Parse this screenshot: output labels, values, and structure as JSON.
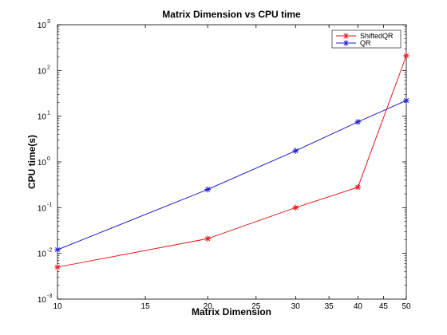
{
  "chart_data": {
    "type": "line",
    "title": "Matrix Dimension vs CPU time",
    "xlabel": "Matrix Dimension",
    "ylabel": "CPU time(s)",
    "x_scale": "log",
    "y_scale": "log",
    "xlim": [
      10,
      50
    ],
    "ylim": [
      0.001,
      1000
    ],
    "x_ticks": [
      10,
      15,
      20,
      25,
      30,
      35,
      40,
      45,
      50
    ],
    "x_tick_labels": [
      "10",
      "15",
      "20",
      "25",
      "30",
      "35",
      "40",
      "45",
      "50"
    ],
    "y_ticks": [
      0.001,
      0.01,
      0.1,
      1,
      10,
      100,
      1000
    ],
    "y_tick_labels": [
      {
        "base": "10",
        "exp": "-3"
      },
      {
        "base": "10",
        "exp": "-2"
      },
      {
        "base": "10",
        "exp": "-1"
      },
      {
        "base": "10",
        "exp": "0"
      },
      {
        "base": "10",
        "exp": "1"
      },
      {
        "base": "10",
        "exp": "2"
      },
      {
        "base": "10",
        "exp": "3"
      }
    ],
    "grid": false,
    "legend_position": "top-right",
    "x": [
      10,
      20,
      30,
      40,
      50
    ],
    "series": [
      {
        "name": "ShiftedQR",
        "color": "#e41a1c",
        "marker": "asterisk",
        "values": [
          0.005,
          0.021,
          0.1,
          0.28,
          210
        ]
      },
      {
        "name": "QR",
        "color": "#1f1fcc",
        "marker": "asterisk",
        "values": [
          0.012,
          0.25,
          1.75,
          7.5,
          22
        ]
      }
    ]
  }
}
